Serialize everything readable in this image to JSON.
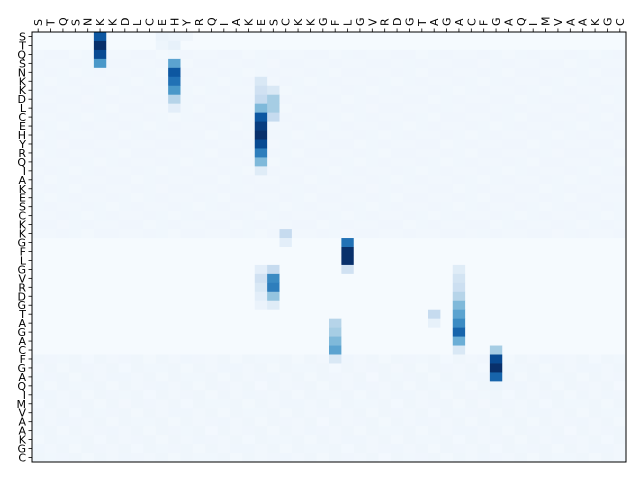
{
  "chart_data": {
    "type": "heatmap",
    "title": "",
    "xlabel": "",
    "ylabel": "",
    "colormap": "Blues",
    "value_range": [
      0,
      1
    ],
    "x_labels": [
      "S",
      "T",
      "Q",
      "S",
      "N",
      "K",
      "K",
      "D",
      "L",
      "C",
      "E",
      "H",
      "Y",
      "R",
      "Q",
      "I",
      "A",
      "K",
      "E",
      "S",
      "C",
      "K",
      "K",
      "G",
      "F",
      "L",
      "G",
      "V",
      "R",
      "D",
      "G",
      "T",
      "A",
      "G",
      "A",
      "C",
      "F",
      "G",
      "A",
      "Q",
      "I",
      "M",
      "V",
      "A",
      "A",
      "K",
      "G",
      "C"
    ],
    "y_labels": [
      "S",
      "T",
      "Q",
      "S",
      "N",
      "K",
      "K",
      "D",
      "L",
      "C",
      "E",
      "H",
      "Y",
      "R",
      "Q",
      "I",
      "A",
      "K",
      "E",
      "S",
      "C",
      "K",
      "K",
      "G",
      "F",
      "L",
      "G",
      "V",
      "R",
      "D",
      "G",
      "T",
      "A",
      "G",
      "A",
      "C",
      "F",
      "G",
      "A",
      "Q",
      "I",
      "M",
      "V",
      "A",
      "A",
      "K",
      "G",
      "C"
    ],
    "strong_cells": [
      {
        "row": 0,
        "col": 5,
        "value": 0.85
      },
      {
        "row": 1,
        "col": 5,
        "value": 1.0
      },
      {
        "row": 2,
        "col": 5,
        "value": 0.9
      },
      {
        "row": 3,
        "col": 5,
        "value": 0.6
      },
      {
        "row": 0,
        "col": 10,
        "value": 0.06
      },
      {
        "row": 0,
        "col": 11,
        "value": 0.05
      },
      {
        "row": 1,
        "col": 10,
        "value": 0.05
      },
      {
        "row": 1,
        "col": 11,
        "value": 0.08
      },
      {
        "row": 0,
        "col": 12,
        "value": 0.04
      },
      {
        "row": 3,
        "col": 11,
        "value": 0.55
      },
      {
        "row": 4,
        "col": 11,
        "value": 0.85
      },
      {
        "row": 5,
        "col": 11,
        "value": 0.75
      },
      {
        "row": 6,
        "col": 11,
        "value": 0.6
      },
      {
        "row": 7,
        "col": 11,
        "value": 0.3
      },
      {
        "row": 8,
        "col": 11,
        "value": 0.1
      },
      {
        "row": 5,
        "col": 18,
        "value": 0.15
      },
      {
        "row": 6,
        "col": 18,
        "value": 0.2
      },
      {
        "row": 6,
        "col": 19,
        "value": 0.15
      },
      {
        "row": 7,
        "col": 18,
        "value": 0.25
      },
      {
        "row": 7,
        "col": 19,
        "value": 0.35
      },
      {
        "row": 8,
        "col": 18,
        "value": 0.45
      },
      {
        "row": 8,
        "col": 19,
        "value": 0.35
      },
      {
        "row": 9,
        "col": 18,
        "value": 0.85
      },
      {
        "row": 9,
        "col": 19,
        "value": 0.25
      },
      {
        "row": 10,
        "col": 18,
        "value": 0.95
      },
      {
        "row": 11,
        "col": 18,
        "value": 1.0
      },
      {
        "row": 12,
        "col": 18,
        "value": 0.9
      },
      {
        "row": 13,
        "col": 18,
        "value": 0.7
      },
      {
        "row": 14,
        "col": 18,
        "value": 0.45
      },
      {
        "row": 15,
        "col": 18,
        "value": 0.12
      },
      {
        "row": 22,
        "col": 20,
        "value": 0.25
      },
      {
        "row": 23,
        "col": 20,
        "value": 0.1
      },
      {
        "row": 23,
        "col": 25,
        "value": 0.75
      },
      {
        "row": 24,
        "col": 25,
        "value": 1.0
      },
      {
        "row": 25,
        "col": 25,
        "value": 1.0
      },
      {
        "row": 26,
        "col": 25,
        "value": 0.2
      },
      {
        "row": 26,
        "col": 18,
        "value": 0.1
      },
      {
        "row": 26,
        "col": 19,
        "value": 0.25
      },
      {
        "row": 27,
        "col": 18,
        "value": 0.2
      },
      {
        "row": 27,
        "col": 19,
        "value": 0.65
      },
      {
        "row": 28,
        "col": 18,
        "value": 0.15
      },
      {
        "row": 28,
        "col": 19,
        "value": 0.7
      },
      {
        "row": 29,
        "col": 18,
        "value": 0.1
      },
      {
        "row": 29,
        "col": 19,
        "value": 0.4
      },
      {
        "row": 30,
        "col": 18,
        "value": 0.06
      },
      {
        "row": 30,
        "col": 19,
        "value": 0.12
      },
      {
        "row": 26,
        "col": 34,
        "value": 0.12
      },
      {
        "row": 27,
        "col": 34,
        "value": 0.18
      },
      {
        "row": 28,
        "col": 34,
        "value": 0.22
      },
      {
        "row": 29,
        "col": 34,
        "value": 0.3
      },
      {
        "row": 30,
        "col": 34,
        "value": 0.45
      },
      {
        "row": 31,
        "col": 34,
        "value": 0.55
      },
      {
        "row": 32,
        "col": 34,
        "value": 0.65
      },
      {
        "row": 33,
        "col": 34,
        "value": 0.8
      },
      {
        "row": 34,
        "col": 34,
        "value": 0.5
      },
      {
        "row": 35,
        "col": 34,
        "value": 0.15
      },
      {
        "row": 31,
        "col": 32,
        "value": 0.25
      },
      {
        "row": 32,
        "col": 32,
        "value": 0.08
      },
      {
        "row": 32,
        "col": 24,
        "value": 0.3
      },
      {
        "row": 33,
        "col": 24,
        "value": 0.35
      },
      {
        "row": 34,
        "col": 24,
        "value": 0.45
      },
      {
        "row": 35,
        "col": 24,
        "value": 0.55
      },
      {
        "row": 36,
        "col": 24,
        "value": 0.15
      },
      {
        "row": 35,
        "col": 37,
        "value": 0.35
      },
      {
        "row": 36,
        "col": 37,
        "value": 0.9
      },
      {
        "row": 37,
        "col": 37,
        "value": 1.0
      },
      {
        "row": 38,
        "col": 37,
        "value": 0.8
      },
      {
        "row": 39,
        "col": 37,
        "value": 0.05
      }
    ]
  }
}
